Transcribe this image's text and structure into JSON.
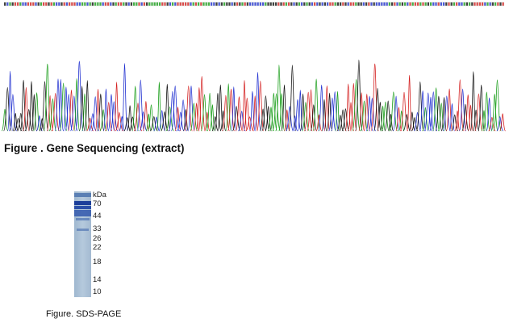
{
  "sequencing": {
    "caption": "Figure . Gene Sequencing (extract)"
  },
  "gel": {
    "unit": "kDa",
    "markers": [
      70,
      44,
      33,
      26,
      22,
      18,
      14,
      10
    ],
    "caption": "Figure. SDS-PAGE"
  }
}
